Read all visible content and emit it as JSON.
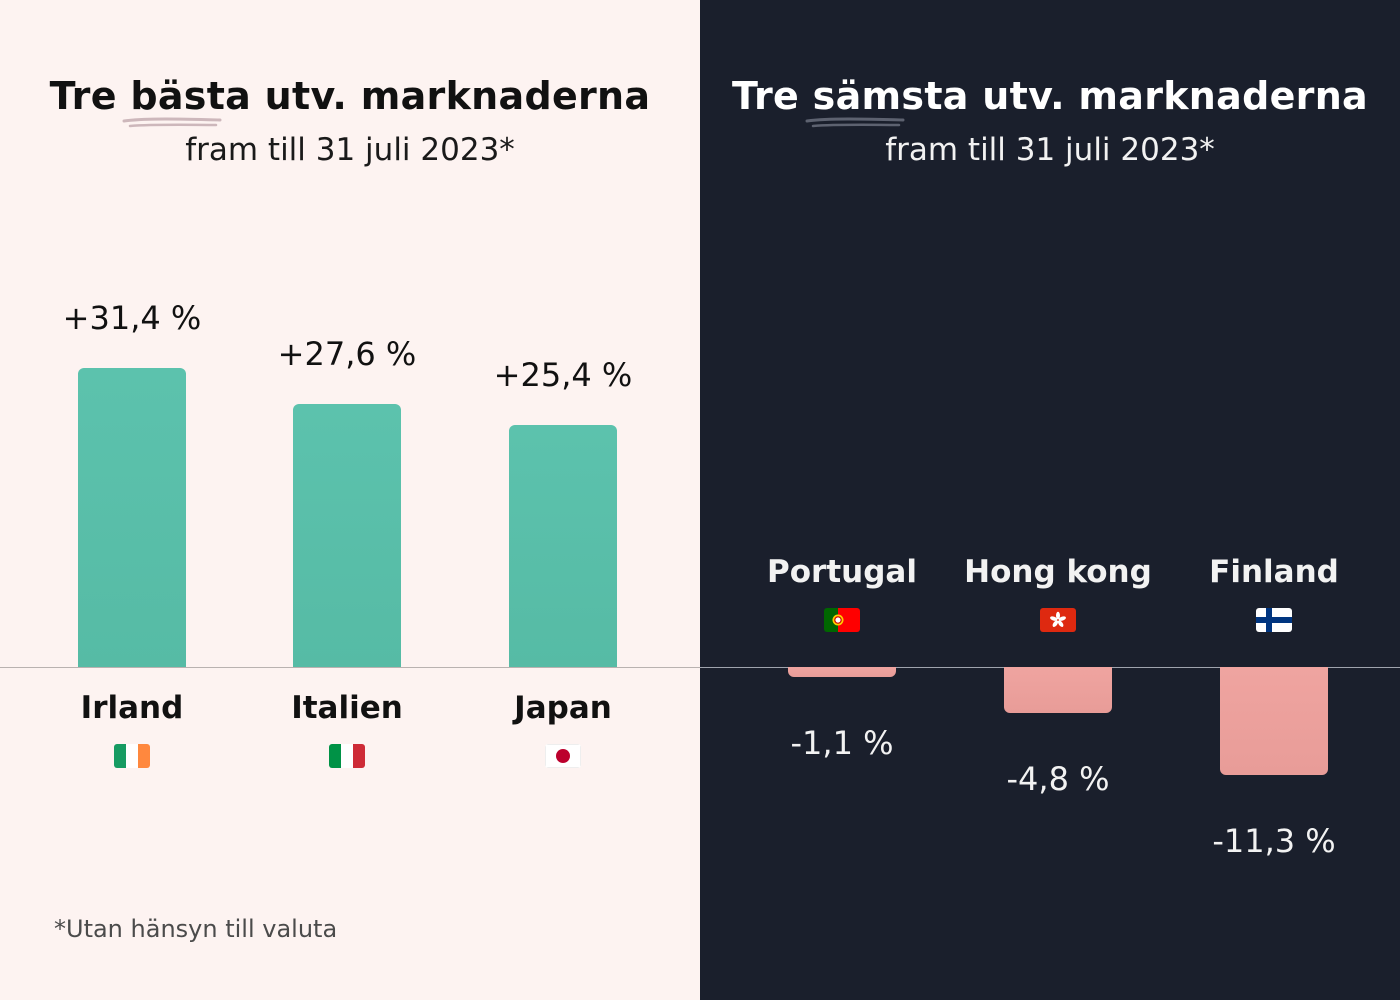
{
  "left": {
    "title_pre": "Tre ",
    "title_highlight": "bästa",
    "title_post": " utv. marknaderna",
    "subtitle": "fram till 31 juli 2023*",
    "footnote": "*Utan hänsyn till valuta"
  },
  "right": {
    "title_pre": "Tre ",
    "title_highlight": "sämsta",
    "title_post": " utv. marknaderna",
    "subtitle": "fram till 31 juli 2023*"
  },
  "colors": {
    "left_bg": "#fdf3f1",
    "right_bg": "#1a1f2c",
    "positive_bar": "#5cc2ad",
    "negative_bar": "#efa4a0",
    "swash": "#cdb7bb"
  },
  "chart_data": [
    {
      "type": "bar",
      "title": "Tre bästa utv. marknaderna",
      "subtitle": "fram till 31 juli 2023*",
      "categories": [
        "Irland",
        "Italien",
        "Japan"
      ],
      "values": [
        31.4,
        27.6,
        25.4
      ],
      "value_labels": [
        "+31,4 %",
        "+27,6 %",
        "+25,4 %"
      ],
      "flags": [
        "flag-ireland-icon",
        "flag-italy-icon",
        "flag-japan-icon"
      ],
      "unit": "%",
      "grid": false
    },
    {
      "type": "bar",
      "title": "Tre sämsta utv. marknaderna",
      "subtitle": "fram till 31 juli 2023*",
      "categories": [
        "Portugal",
        "Hong kong",
        "Finland"
      ],
      "values": [
        -1.1,
        -4.8,
        -11.3
      ],
      "value_labels": [
        "-1,1 %",
        "-4,8 %",
        "-11,3 %"
      ],
      "flags": [
        "flag-portugal-icon",
        "flag-hong-kong-icon",
        "flag-finland-icon"
      ],
      "unit": "%",
      "grid": false
    }
  ]
}
